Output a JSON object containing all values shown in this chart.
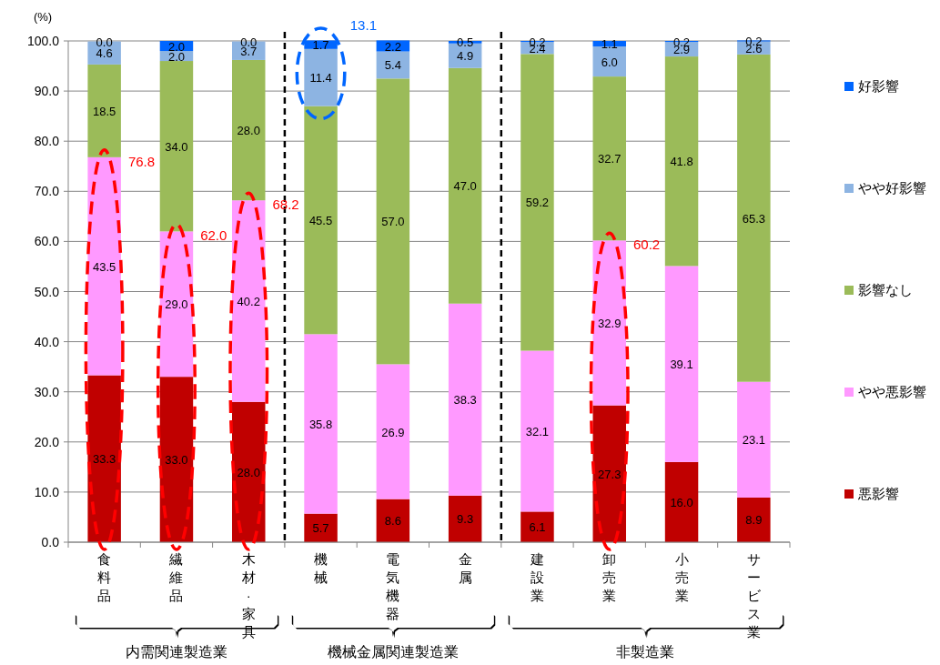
{
  "chart_data": {
    "type": "bar",
    "stacked": true,
    "ylabel": "(%)",
    "categories": [
      "食料品",
      "繊維品",
      "木材·家具",
      "機械",
      "電気機器",
      "金属",
      "建設業",
      "卸売業",
      "小売業",
      "サービス業"
    ],
    "series": [
      {
        "name": "悪影響",
        "color": "#c00000",
        "values": [
          33.3,
          33.0,
          28.0,
          5.7,
          8.6,
          9.3,
          6.1,
          27.3,
          16.0,
          8.9
        ],
        "value_labels": [
          "33.3",
          "33.0",
          "28.0",
          "5.7",
          "8.6",
          "9.3",
          "6.1",
          "27.3",
          "16.0",
          "8.9"
        ]
      },
      {
        "name": "やや悪影響",
        "color": "#ff99ff",
        "values": [
          43.5,
          29.0,
          40.2,
          35.8,
          26.9,
          38.3,
          32.1,
          32.9,
          39.1,
          23.1
        ],
        "value_labels": [
          "43.5",
          "29.0",
          "40.2",
          "35.8",
          "26.9",
          "38.3",
          "32.1",
          "32.9",
          "39.1",
          "23.1"
        ]
      },
      {
        "name": "影響なし",
        "color": "#9bbb59",
        "values": [
          18.5,
          34.0,
          28.0,
          45.5,
          57.0,
          47.0,
          59.2,
          32.7,
          41.8,
          65.3
        ],
        "value_labels": [
          "18.5",
          "34.0",
          "28.0",
          "45.5",
          "57.0",
          "47.0",
          "59.2",
          "32.7",
          "41.8",
          "65.3"
        ]
      },
      {
        "name": "やや好影響",
        "color": "#8db4e2",
        "values": [
          4.6,
          2.0,
          3.7,
          11.4,
          5.4,
          4.9,
          2.4,
          6.0,
          2.9,
          2.6
        ],
        "value_labels": [
          "4.6",
          "2.0",
          "3.7",
          "11.4",
          "5.4",
          "4.9",
          "2.4",
          "6.0",
          "2.9",
          "2.6"
        ]
      },
      {
        "name": "好影響",
        "color": "#0066ff",
        "values": [
          0.0,
          2.0,
          0.0,
          1.7,
          2.2,
          0.5,
          0.2,
          1.1,
          0.2,
          0.2
        ],
        "value_labels": [
          "0.0",
          "2.0",
          "0.0",
          "1.7",
          "2.2",
          "0.5",
          "0.2",
          "1.1",
          "0.2",
          "0.2"
        ]
      }
    ],
    "ylim": [
      0,
      100
    ],
    "yticks": [
      {
        "value": 0,
        "label": "0.0"
      },
      {
        "value": 10,
        "label": "10.0"
      },
      {
        "value": 20,
        "label": "20.0"
      },
      {
        "value": 30,
        "label": "30.0"
      },
      {
        "value": 40,
        "label": "40.0"
      },
      {
        "value": 50,
        "label": "50.0"
      },
      {
        "value": 60,
        "label": "60.0"
      },
      {
        "value": 70,
        "label": "70.0"
      },
      {
        "value": 80,
        "label": "80.0"
      },
      {
        "value": 90,
        "label": "90.0"
      },
      {
        "value": 100,
        "label": "100.0"
      }
    ],
    "grid": "y",
    "legend": "right",
    "annotations": [
      "内需関連製造業",
      "機械金属関連製造業",
      "非製造業",
      {
        "text": "76.8",
        "x": "食料品",
        "y": 76.8
      },
      {
        "text": "62.0",
        "x": "繊維品",
        "y": 62.0
      },
      {
        "text": "68.2",
        "x": "木材·家具",
        "y": 68.2
      },
      {
        "text": "13.1",
        "x": "機械",
        "y": 100
      },
      {
        "text": "60.2",
        "x": "卸売業",
        "y": 60.2
      }
    ]
  }
}
